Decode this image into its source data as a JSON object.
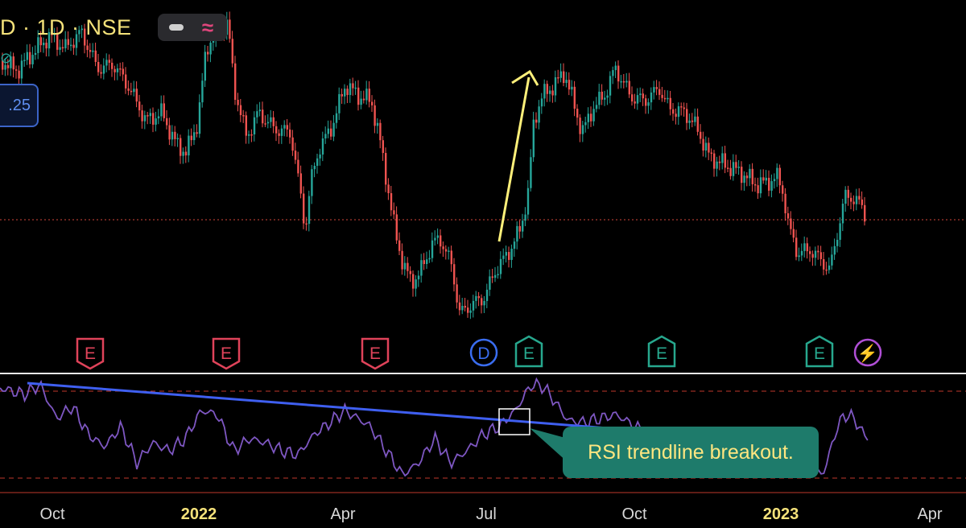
{
  "header": {
    "symbol_text": "D · 1D · NSE",
    "indicator_toggle": {
      "minus_icon": "minus-icon",
      "wave_icon": "wave-icon"
    }
  },
  "side_glyph": "⊘",
  "price_label": ".25",
  "events": [
    {
      "label": "E",
      "date": "2021-11",
      "color": "#e0435a"
    },
    {
      "label": "E",
      "date": "2022-02",
      "color": "#e0435a"
    },
    {
      "label": "E",
      "date": "2022-05",
      "color": "#e0435a"
    },
    {
      "label": "D",
      "date": "2022-07",
      "color": "#3a6df0"
    },
    {
      "label": "E",
      "date": "2022-08",
      "color": "#27a88e"
    },
    {
      "label": "E",
      "date": "2022-11",
      "color": "#27a88e"
    },
    {
      "label": "E",
      "date": "2023-01",
      "color": "#27a88e"
    },
    {
      "label": "⚡",
      "date": "2023-02",
      "color": "#b04fd6"
    }
  ],
  "annotation": {
    "text": "RSI trendline breakout."
  },
  "x_axis": [
    {
      "label": "Oct",
      "year": false
    },
    {
      "label": "2022",
      "year": true
    },
    {
      "label": "Apr",
      "year": false
    },
    {
      "label": "Jul",
      "year": false
    },
    {
      "label": "Oct",
      "year": false
    },
    {
      "label": "2023",
      "year": true
    },
    {
      "label": "Apr",
      "year": false
    }
  ],
  "colors": {
    "up": "#26a69a",
    "down": "#ef5350",
    "rsi": "#7e57c2",
    "trendline": "#3f5ff0",
    "arrow": "#fff07a",
    "callout_bg": "#1e7b6b",
    "callout_text": "#ffe680",
    "price_line": "#d2463a",
    "rsi_band": "#c0392b"
  }
}
